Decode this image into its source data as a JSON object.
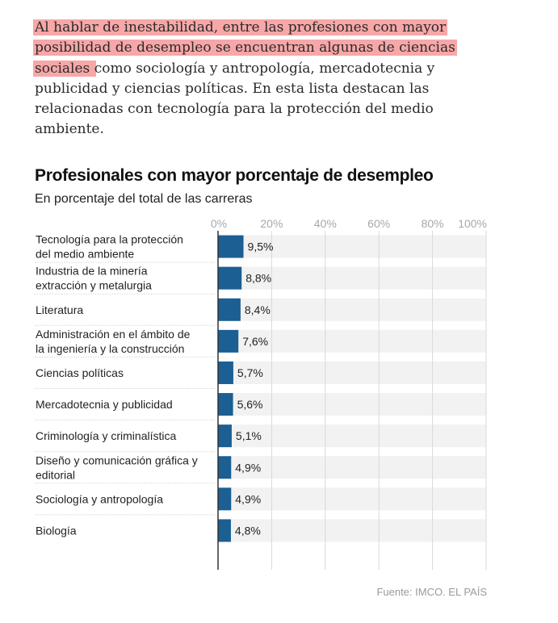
{
  "article": {
    "highlighted_text": "Al hablar de inestabilidad, entre las profesiones con mayor posibilidad de desempleo se encuentran algunas de ciencias sociales ",
    "rest_text": "como sociología y antropología, mercadotecnia y publicidad y ciencias políticas. En esta lista destacan las relacionadas con tecnología para la protección del medio ambiente.",
    "highlight_color": "#f7a7a7"
  },
  "chart_data": {
    "type": "bar",
    "orientation": "horizontal",
    "title": "Profesionales con mayor porcentaje de desempleo",
    "subtitle": "En porcentaje del total de las carreras",
    "categories": [
      [
        "Tecnología para la protección",
        "del medio ambiente"
      ],
      [
        "Industria de la minería",
        "extracción y metalurgia"
      ],
      [
        "Literatura"
      ],
      [
        "Administración en el ámbito de",
        "la ingeniería y la construcción"
      ],
      [
        "Ciencias políticas"
      ],
      [
        "Mercadotecnia y publicidad"
      ],
      [
        "Criminología y criminalística"
      ],
      [
        "Diseño y comunicación gráfica y",
        "editorial"
      ],
      [
        "Sociología y antropología"
      ],
      [
        "Biología"
      ]
    ],
    "values": [
      9.5,
      8.8,
      8.4,
      7.6,
      5.7,
      5.6,
      5.1,
      4.9,
      4.9,
      4.8
    ],
    "value_labels": [
      "9,5%",
      "8,8%",
      "8,4%",
      "7,6%",
      "5,7%",
      "5,6%",
      "5,1%",
      "4,9%",
      "4,9%",
      "4,8%"
    ],
    "xlim": [
      0,
      100
    ],
    "xticks": [
      0,
      20,
      40,
      60,
      80,
      100
    ],
    "xtick_labels": [
      "0%",
      "20%",
      "40%",
      "60%",
      "80%",
      "100%"
    ],
    "gridlines": true,
    "bar_color": "#1b5f93",
    "track_color": "#f2f2f2",
    "source": "Fuente: IMCO. EL PAÍS"
  }
}
